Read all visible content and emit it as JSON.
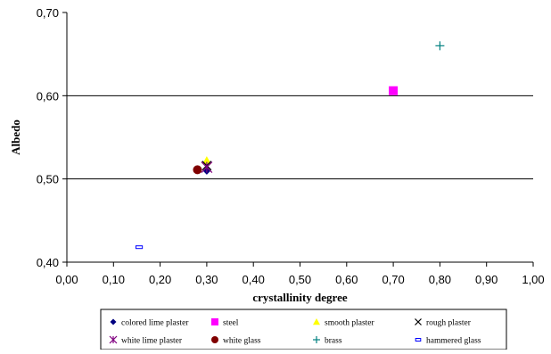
{
  "chart_data": {
    "type": "scatter",
    "title": "",
    "xlabel": "crystallinity degree",
    "ylabel": "Albedo",
    "xlim": [
      0.0,
      1.0
    ],
    "ylim": [
      0.4,
      0.7
    ],
    "x_ticks": [
      "0,00",
      "0,10",
      "0,20",
      "0,30",
      "0,40",
      "0,50",
      "0,60",
      "0,70",
      "0,80",
      "0,90",
      "1,00"
    ],
    "y_ticks": [
      "0,40",
      "0,50",
      "0,60",
      "0,70"
    ],
    "grid": "horizontal major gridlines at 0,50 and 0,60",
    "legend_position": "bottom",
    "series": [
      {
        "name": "colored lime plaster",
        "marker": "diamond",
        "color": "#000080",
        "points": [
          {
            "x": 0.3,
            "y": 0.51
          }
        ]
      },
      {
        "name": "steel",
        "marker": "square",
        "color": "#ff00ff",
        "points": [
          {
            "x": 0.7,
            "y": 0.606
          }
        ]
      },
      {
        "name": "smooth plaster",
        "marker": "triangle",
        "color": "#ffff00",
        "points": [
          {
            "x": 0.3,
            "y": 0.522
          }
        ]
      },
      {
        "name": "rough plaster",
        "marker": "x",
        "color": "#000000",
        "points": [
          {
            "x": 0.3,
            "y": 0.516
          }
        ]
      },
      {
        "name": "white lime plaster",
        "marker": "asterisk",
        "color": "#800080",
        "points": [
          {
            "x": 0.3,
            "y": 0.514
          }
        ]
      },
      {
        "name": "white glass",
        "marker": "circle",
        "color": "#800000",
        "points": [
          {
            "x": 0.28,
            "y": 0.511
          }
        ]
      },
      {
        "name": "brass",
        "marker": "plus",
        "color": "#008080",
        "points": [
          {
            "x": 0.8,
            "y": 0.66
          }
        ]
      },
      {
        "name": "hammered glass",
        "marker": "dash",
        "color": "#0000ff",
        "points": [
          {
            "x": 0.155,
            "y": 0.418
          }
        ]
      }
    ]
  }
}
